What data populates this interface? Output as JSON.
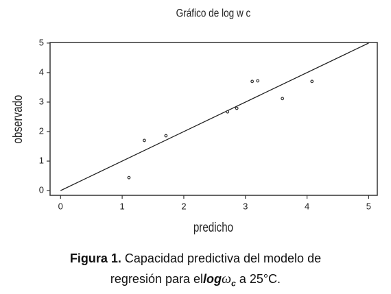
{
  "chart_data": {
    "type": "scatter",
    "title": "Gráfico de log w c",
    "xlabel": "predicho",
    "ylabel": "observado",
    "xlim": [
      -0.17,
      5.14
    ],
    "ylim": [
      -0.16,
      5.02
    ],
    "xticks": [
      0,
      1,
      2,
      3,
      4,
      5
    ],
    "yticks": [
      0,
      1,
      2,
      3,
      4,
      5
    ],
    "series": [
      {
        "color": "#333333",
        "x": [
          1.11,
          1.36,
          1.71,
          2.71,
          2.86,
          3.11,
          3.2,
          3.6,
          4.08
        ],
        "y": [
          0.44,
          1.7,
          1.86,
          2.67,
          2.79,
          3.7,
          3.72,
          3.12,
          3.7
        ]
      }
    ],
    "line": {
      "color": "#222222",
      "x": [
        0,
        5
      ],
      "y": [
        0,
        5
      ]
    }
  },
  "caption": {
    "label": "Figura 1.",
    "text1": "Capacidad predictiva del modelo de",
    "text2": "regresión para el",
    "emph": "log",
    "symbol": "ω",
    "subscript": "c",
    "tail": "a 25°C."
  }
}
